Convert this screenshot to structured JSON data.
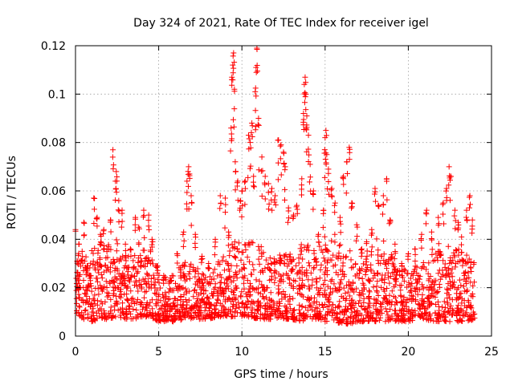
{
  "chart_data": {
    "type": "scatter",
    "title": "Day 324 of 2021, Rate Of TEC Index for receiver igel",
    "xlabel": "GPS time / hours",
    "ylabel": "ROTI / TECUs",
    "xlim": [
      0,
      25
    ],
    "ylim": [
      0,
      0.12
    ],
    "xticks": [
      "0",
      "5",
      "10",
      "15",
      "20",
      "25"
    ],
    "yticks": [
      "0",
      "0.02",
      "0.04",
      "0.06",
      "0.08",
      "0.1",
      "0.12"
    ],
    "grid": true,
    "marker": "+",
    "marker_color": "#ff0000",
    "series": [
      {
        "name": "ROTI",
        "points": [
          [
            0.0,
            0.044
          ],
          [
            0.1,
            0.031
          ],
          [
            0.2,
            0.038
          ],
          [
            0.4,
            0.035
          ],
          [
            0.5,
            0.047
          ],
          [
            0.7,
            0.029
          ],
          [
            0.9,
            0.025
          ],
          [
            1.1,
            0.057
          ],
          [
            1.3,
            0.049
          ],
          [
            1.5,
            0.042
          ],
          [
            1.7,
            0.044
          ],
          [
            1.9,
            0.036
          ],
          [
            2.1,
            0.048
          ],
          [
            2.25,
            0.077
          ],
          [
            2.4,
            0.064
          ],
          [
            2.45,
            0.068
          ],
          [
            2.6,
            0.056
          ],
          [
            2.8,
            0.052
          ],
          [
            3.0,
            0.038
          ],
          [
            3.3,
            0.036
          ],
          [
            3.6,
            0.049
          ],
          [
            3.8,
            0.045
          ],
          [
            4.1,
            0.052
          ],
          [
            4.4,
            0.05
          ],
          [
            4.6,
            0.04
          ],
          [
            4.9,
            0.029
          ],
          [
            5.3,
            0.025
          ],
          [
            5.7,
            0.024
          ],
          [
            6.1,
            0.034
          ],
          [
            6.5,
            0.043
          ],
          [
            6.7,
            0.064
          ],
          [
            6.8,
            0.07
          ],
          [
            6.85,
            0.067
          ],
          [
            6.95,
            0.058
          ],
          [
            7.2,
            0.042
          ],
          [
            7.6,
            0.033
          ],
          [
            8.0,
            0.03
          ],
          [
            8.4,
            0.04
          ],
          [
            8.7,
            0.058
          ],
          [
            9.0,
            0.057
          ],
          [
            9.2,
            0.043
          ],
          [
            9.35,
            0.086
          ],
          [
            9.4,
            0.107
          ],
          [
            9.45,
            0.112
          ],
          [
            9.5,
            0.117
          ],
          [
            9.55,
            0.102
          ],
          [
            9.6,
            0.072
          ],
          [
            9.75,
            0.064
          ],
          [
            9.9,
            0.056
          ],
          [
            10.0,
            0.06
          ],
          [
            10.2,
            0.064
          ],
          [
            10.4,
            0.083
          ],
          [
            10.5,
            0.08
          ],
          [
            10.6,
            0.088
          ],
          [
            10.7,
            0.066
          ],
          [
            10.8,
            0.101
          ],
          [
            10.85,
            0.111
          ],
          [
            10.9,
            0.119
          ],
          [
            11.0,
            0.09
          ],
          [
            11.2,
            0.074
          ],
          [
            11.4,
            0.066
          ],
          [
            11.6,
            0.063
          ],
          [
            11.8,
            0.061
          ],
          [
            12.0,
            0.058
          ],
          [
            12.2,
            0.081
          ],
          [
            12.35,
            0.079
          ],
          [
            12.5,
            0.076
          ],
          [
            12.6,
            0.07
          ],
          [
            12.8,
            0.053
          ],
          [
            13.1,
            0.05
          ],
          [
            13.3,
            0.054
          ],
          [
            13.6,
            0.065
          ],
          [
            13.7,
            0.092
          ],
          [
            13.75,
            0.104
          ],
          [
            13.8,
            0.107
          ],
          [
            13.85,
            0.1
          ],
          [
            13.9,
            0.091
          ],
          [
            14.0,
            0.083
          ],
          [
            14.1,
            0.071
          ],
          [
            14.3,
            0.06
          ],
          [
            14.6,
            0.042
          ],
          [
            14.9,
            0.052
          ],
          [
            15.0,
            0.082
          ],
          [
            15.05,
            0.085
          ],
          [
            15.1,
            0.075
          ],
          [
            15.2,
            0.069
          ],
          [
            15.4,
            0.061
          ],
          [
            15.6,
            0.055
          ],
          [
            15.9,
            0.049
          ],
          [
            16.1,
            0.066
          ],
          [
            16.3,
            0.072
          ],
          [
            16.45,
            0.078
          ],
          [
            16.6,
            0.055
          ],
          [
            16.9,
            0.046
          ],
          [
            17.2,
            0.036
          ],
          [
            17.5,
            0.039
          ],
          [
            17.8,
            0.044
          ],
          [
            18.0,
            0.061
          ],
          [
            18.2,
            0.054
          ],
          [
            18.5,
            0.058
          ],
          [
            18.7,
            0.065
          ],
          [
            18.9,
            0.048
          ],
          [
            19.2,
            0.038
          ],
          [
            19.6,
            0.03
          ],
          [
            20.0,
            0.034
          ],
          [
            20.4,
            0.036
          ],
          [
            20.8,
            0.042
          ],
          [
            21.1,
            0.052
          ],
          [
            21.4,
            0.043
          ],
          [
            21.8,
            0.049
          ],
          [
            22.1,
            0.055
          ],
          [
            22.3,
            0.061
          ],
          [
            22.45,
            0.07
          ],
          [
            22.55,
            0.066
          ],
          [
            22.8,
            0.052
          ],
          [
            23.0,
            0.047
          ],
          [
            23.2,
            0.041
          ],
          [
            23.5,
            0.052
          ],
          [
            23.7,
            0.058
          ],
          [
            23.85,
            0.048
          ]
        ],
        "band": {
          "description_free": true,
          "envelope": [
            [
              0.0,
              0.009,
              0.03
            ],
            [
              0.5,
              0.007,
              0.034
            ],
            [
              1.0,
              0.006,
              0.036
            ],
            [
              1.5,
              0.007,
              0.04
            ],
            [
              2.0,
              0.007,
              0.038
            ],
            [
              2.5,
              0.008,
              0.04
            ],
            [
              3.0,
              0.007,
              0.034
            ],
            [
              3.5,
              0.007,
              0.033
            ],
            [
              4.0,
              0.008,
              0.036
            ],
            [
              4.5,
              0.008,
              0.036
            ],
            [
              5.0,
              0.006,
              0.026
            ],
            [
              5.5,
              0.006,
              0.024
            ],
            [
              6.0,
              0.006,
              0.026
            ],
            [
              6.5,
              0.007,
              0.032
            ],
            [
              7.0,
              0.007,
              0.032
            ],
            [
              7.5,
              0.007,
              0.026
            ],
            [
              8.0,
              0.007,
              0.026
            ],
            [
              8.5,
              0.008,
              0.03
            ],
            [
              9.0,
              0.008,
              0.034
            ],
            [
              9.5,
              0.008,
              0.04
            ],
            [
              10.0,
              0.008,
              0.038
            ],
            [
              10.5,
              0.008,
              0.04
            ],
            [
              11.0,
              0.007,
              0.038
            ],
            [
              11.5,
              0.007,
              0.036
            ],
            [
              12.0,
              0.007,
              0.034
            ],
            [
              12.5,
              0.007,
              0.035
            ],
            [
              13.0,
              0.007,
              0.034
            ],
            [
              13.5,
              0.006,
              0.038
            ],
            [
              14.0,
              0.007,
              0.04
            ],
            [
              14.5,
              0.007,
              0.038
            ],
            [
              15.0,
              0.006,
              0.042
            ],
            [
              15.5,
              0.006,
              0.04
            ],
            [
              16.0,
              0.005,
              0.038
            ],
            [
              16.5,
              0.005,
              0.036
            ],
            [
              17.0,
              0.006,
              0.03
            ],
            [
              17.5,
              0.006,
              0.034
            ],
            [
              18.0,
              0.006,
              0.04
            ],
            [
              18.5,
              0.006,
              0.042
            ],
            [
              19.0,
              0.006,
              0.034
            ],
            [
              19.5,
              0.006,
              0.028
            ],
            [
              20.0,
              0.006,
              0.028
            ],
            [
              20.5,
              0.007,
              0.03
            ],
            [
              21.0,
              0.007,
              0.032
            ],
            [
              21.5,
              0.006,
              0.034
            ],
            [
              22.0,
              0.006,
              0.036
            ],
            [
              22.5,
              0.006,
              0.038
            ],
            [
              23.0,
              0.006,
              0.036
            ],
            [
              23.5,
              0.006,
              0.034
            ],
            [
              24.0,
              0.007,
              0.03
            ]
          ],
          "density_per_hour": 90
        }
      }
    ]
  }
}
